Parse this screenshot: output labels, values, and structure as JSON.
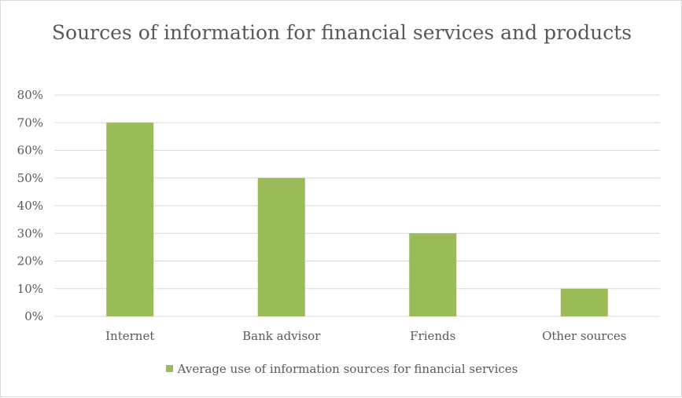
{
  "chart_data": {
    "type": "bar",
    "title": "Sources of information for financial services and products",
    "categories": [
      "Internet",
      "Bank advisor",
      "Friends",
      "Other sources"
    ],
    "series": [
      {
        "name": "Average use of information sources for financial services",
        "values": [
          0.7,
          0.5,
          0.3,
          0.1
        ],
        "color": "#9bbb59"
      }
    ],
    "ylim": [
      0,
      0.8
    ],
    "yticks": [
      "0%",
      "10%",
      "20%",
      "30%",
      "40%",
      "50%",
      "60%",
      "70%",
      "80%"
    ],
    "grid": true,
    "legend_position": "bottom"
  }
}
